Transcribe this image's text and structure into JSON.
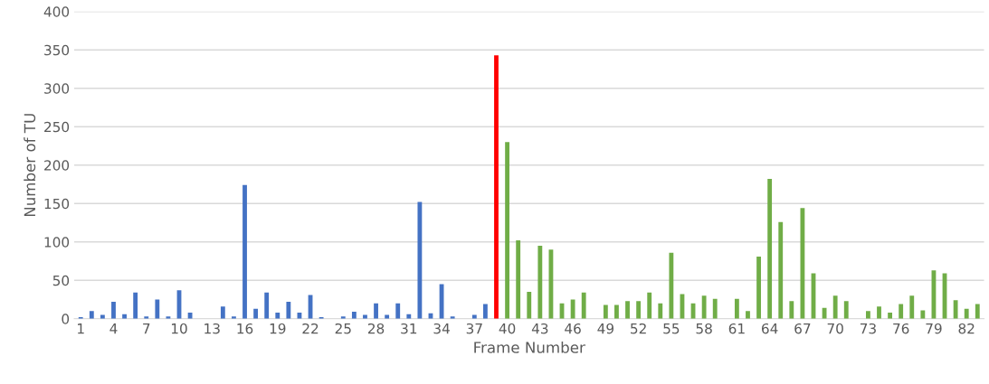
{
  "chart_data": {
    "type": "bar",
    "xlabel": "Frame Number",
    "ylabel": "Number of TU",
    "categories": [
      "1",
      null,
      null,
      "4",
      null,
      null,
      "7",
      null,
      null,
      "10",
      null,
      null,
      "13",
      null,
      null,
      "16",
      null,
      null,
      "19",
      null,
      null,
      "22",
      null,
      null,
      "25",
      null,
      null,
      "28",
      null,
      null,
      "31",
      null,
      null,
      "34",
      null,
      null,
      "37",
      null,
      null,
      "40",
      null,
      null,
      "43",
      null,
      null,
      "46",
      null,
      null,
      "49",
      null,
      null,
      "52",
      null,
      null,
      "55",
      null,
      null,
      "58",
      null,
      null,
      "61",
      null,
      null,
      "64",
      null,
      null,
      "67",
      null,
      null,
      "70",
      null,
      null,
      "73",
      null,
      null,
      "76",
      null,
      null,
      "79",
      null,
      null,
      "82",
      null
    ],
    "values": [
      2,
      10,
      5,
      22,
      6,
      34,
      3,
      25,
      3,
      37,
      8,
      0,
      0,
      16,
      3,
      174,
      13,
      34,
      8,
      22,
      8,
      31,
      2,
      0,
      3,
      9,
      5,
      20,
      5,
      20,
      6,
      152,
      7,
      45,
      3,
      0,
      5,
      19,
      343,
      230,
      102,
      35,
      95,
      90,
      20,
      25,
      34,
      0,
      18,
      18,
      23,
      23,
      34,
      20,
      86,
      32,
      20,
      30,
      26,
      0,
      26,
      10,
      81,
      182,
      126,
      23,
      144,
      59,
      14,
      30,
      23,
      0,
      10,
      16,
      8,
      19,
      30,
      11,
      63,
      59,
      24,
      13,
      19
    ],
    "colors": [
      "#4472c4",
      "#4472c4",
      "#4472c4",
      "#4472c4",
      "#4472c4",
      "#4472c4",
      "#4472c4",
      "#4472c4",
      "#4472c4",
      "#4472c4",
      "#4472c4",
      "#4472c4",
      "#4472c4",
      "#4472c4",
      "#4472c4",
      "#4472c4",
      "#4472c4",
      "#4472c4",
      "#4472c4",
      "#4472c4",
      "#4472c4",
      "#4472c4",
      "#4472c4",
      "#4472c4",
      "#4472c4",
      "#4472c4",
      "#4472c4",
      "#4472c4",
      "#4472c4",
      "#4472c4",
      "#4472c4",
      "#4472c4",
      "#4472c4",
      "#4472c4",
      "#4472c4",
      "#4472c4",
      "#4472c4",
      "#4472c4",
      "#ff0000",
      "#70ad47",
      "#70ad47",
      "#70ad47",
      "#70ad47",
      "#70ad47",
      "#70ad47",
      "#70ad47",
      "#70ad47",
      "#70ad47",
      "#70ad47",
      "#70ad47",
      "#70ad47",
      "#70ad47",
      "#70ad47",
      "#70ad47",
      "#70ad47",
      "#70ad47",
      "#70ad47",
      "#70ad47",
      "#70ad47",
      "#70ad47",
      "#70ad47",
      "#70ad47",
      "#70ad47",
      "#70ad47",
      "#70ad47",
      "#70ad47",
      "#70ad47",
      "#70ad47",
      "#70ad47",
      "#70ad47",
      "#70ad47",
      "#70ad47",
      "#70ad47",
      "#70ad47",
      "#70ad47",
      "#70ad47",
      "#70ad47",
      "#70ad47",
      "#70ad47",
      "#70ad47",
      "#70ad47",
      "#70ad47",
      "#70ad47"
    ],
    "ylim": [
      0,
      400
    ],
    "yticks": [
      0,
      50,
      100,
      150,
      200,
      250,
      300,
      350,
      400
    ],
    "grid": "y"
  }
}
